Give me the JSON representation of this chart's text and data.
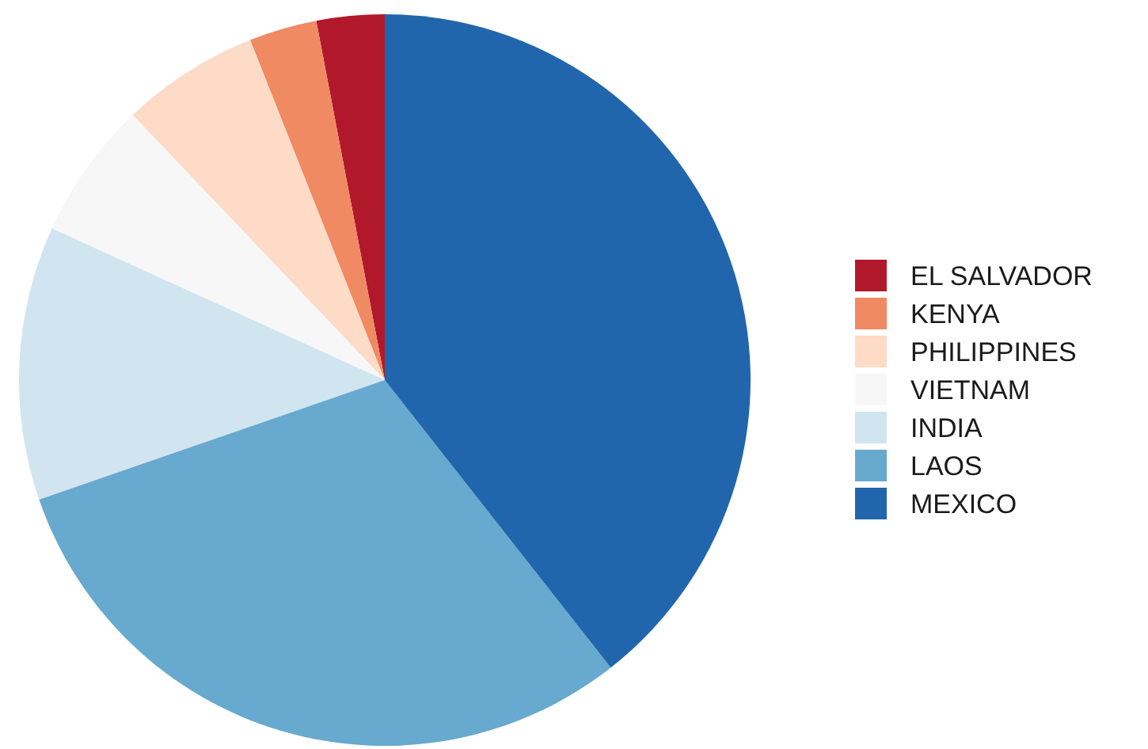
{
  "chart_data": {
    "type": "pie",
    "categories": [
      "EL SALVADOR",
      "KENYA",
      "PHILIPPINES",
      "VIETNAM",
      "INDIA",
      "LAOS",
      "MEXICO"
    ],
    "values": [
      3.0,
      3.0,
      6.1,
      6.1,
      12.1,
      30.3,
      39.4
    ],
    "colors": [
      "#b2182b",
      "#ef8a62",
      "#fddbc7",
      "#f7f7f7",
      "#d1e5f0",
      "#67a9cf",
      "#2166ac"
    ],
    "legend": "right"
  }
}
